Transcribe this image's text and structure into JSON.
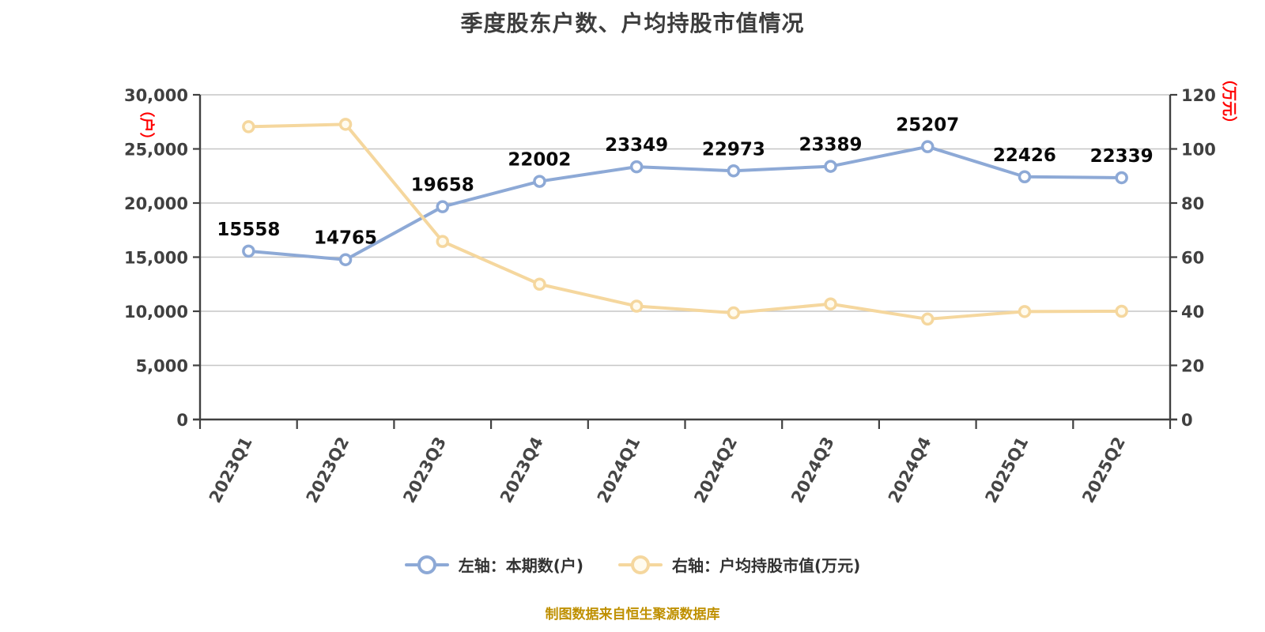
{
  "title": "季度股东户数、户均持股市值情况",
  "source_note": "制图数据来自恒生聚源数据库",
  "legend": [
    {
      "label": "左轴：本期数(户)",
      "color": "#8da9d6",
      "marker_fill": "#ffffff"
    },
    {
      "label": "右轴：户均持股市值(万元)",
      "color": "#f5d79e",
      "marker_fill": "#fffbee"
    }
  ],
  "colors": {
    "title": "#3d3d3d",
    "axis": "#404040",
    "grid": "#c6c6c6",
    "tick_label": "#404040",
    "x_label": "#454545",
    "data_label": "#0a0a0a",
    "axis_unit": "#ff0000",
    "source_note": "#bf9000",
    "background": "#ffffff"
  },
  "chart_data": {
    "type": "line",
    "title": "季度股东户数、户均持股市值情况",
    "categories": [
      "2023Q1",
      "2023Q2",
      "2023Q3",
      "2023Q4",
      "2024Q1",
      "2024Q2",
      "2024Q3",
      "2024Q4",
      "2025Q1",
      "2025Q2"
    ],
    "series": [
      {
        "name": "左轴：本期数(户)",
        "yaxis": "left",
        "color": "#8da9d6",
        "marker_fill": "#ffffff",
        "labels_shown": true,
        "values": [
          15558,
          14765,
          19658,
          22002,
          23349,
          22973,
          23389,
          25207,
          22426,
          22339
        ]
      },
      {
        "name": "右轴：户均持股市值(万元)",
        "yaxis": "right",
        "color": "#f5d79e",
        "marker_fill": "#fffbee",
        "labels_shown": false,
        "values": [
          108.2,
          109.1,
          65.8,
          50.0,
          41.9,
          39.4,
          42.7,
          37.1,
          39.9,
          40.0
        ]
      }
    ],
    "left_axis": {
      "name": "（户）",
      "min": 0,
      "max": 30000,
      "ticks": [
        0,
        5000,
        10000,
        15000,
        20000,
        25000,
        30000
      ],
      "tick_labels": [
        "0",
        "5,000",
        "10,000",
        "15,000",
        "20,000",
        "25,000",
        "30,000"
      ]
    },
    "right_axis": {
      "name": "（万元）",
      "min": 0,
      "max": 120,
      "ticks": [
        0,
        20,
        40,
        60,
        80,
        100,
        120
      ],
      "tick_labels": [
        "0",
        "20",
        "40",
        "60",
        "80",
        "100",
        "120"
      ]
    },
    "grid": true,
    "legend_position": "bottom",
    "x_label_rotation": -62
  }
}
